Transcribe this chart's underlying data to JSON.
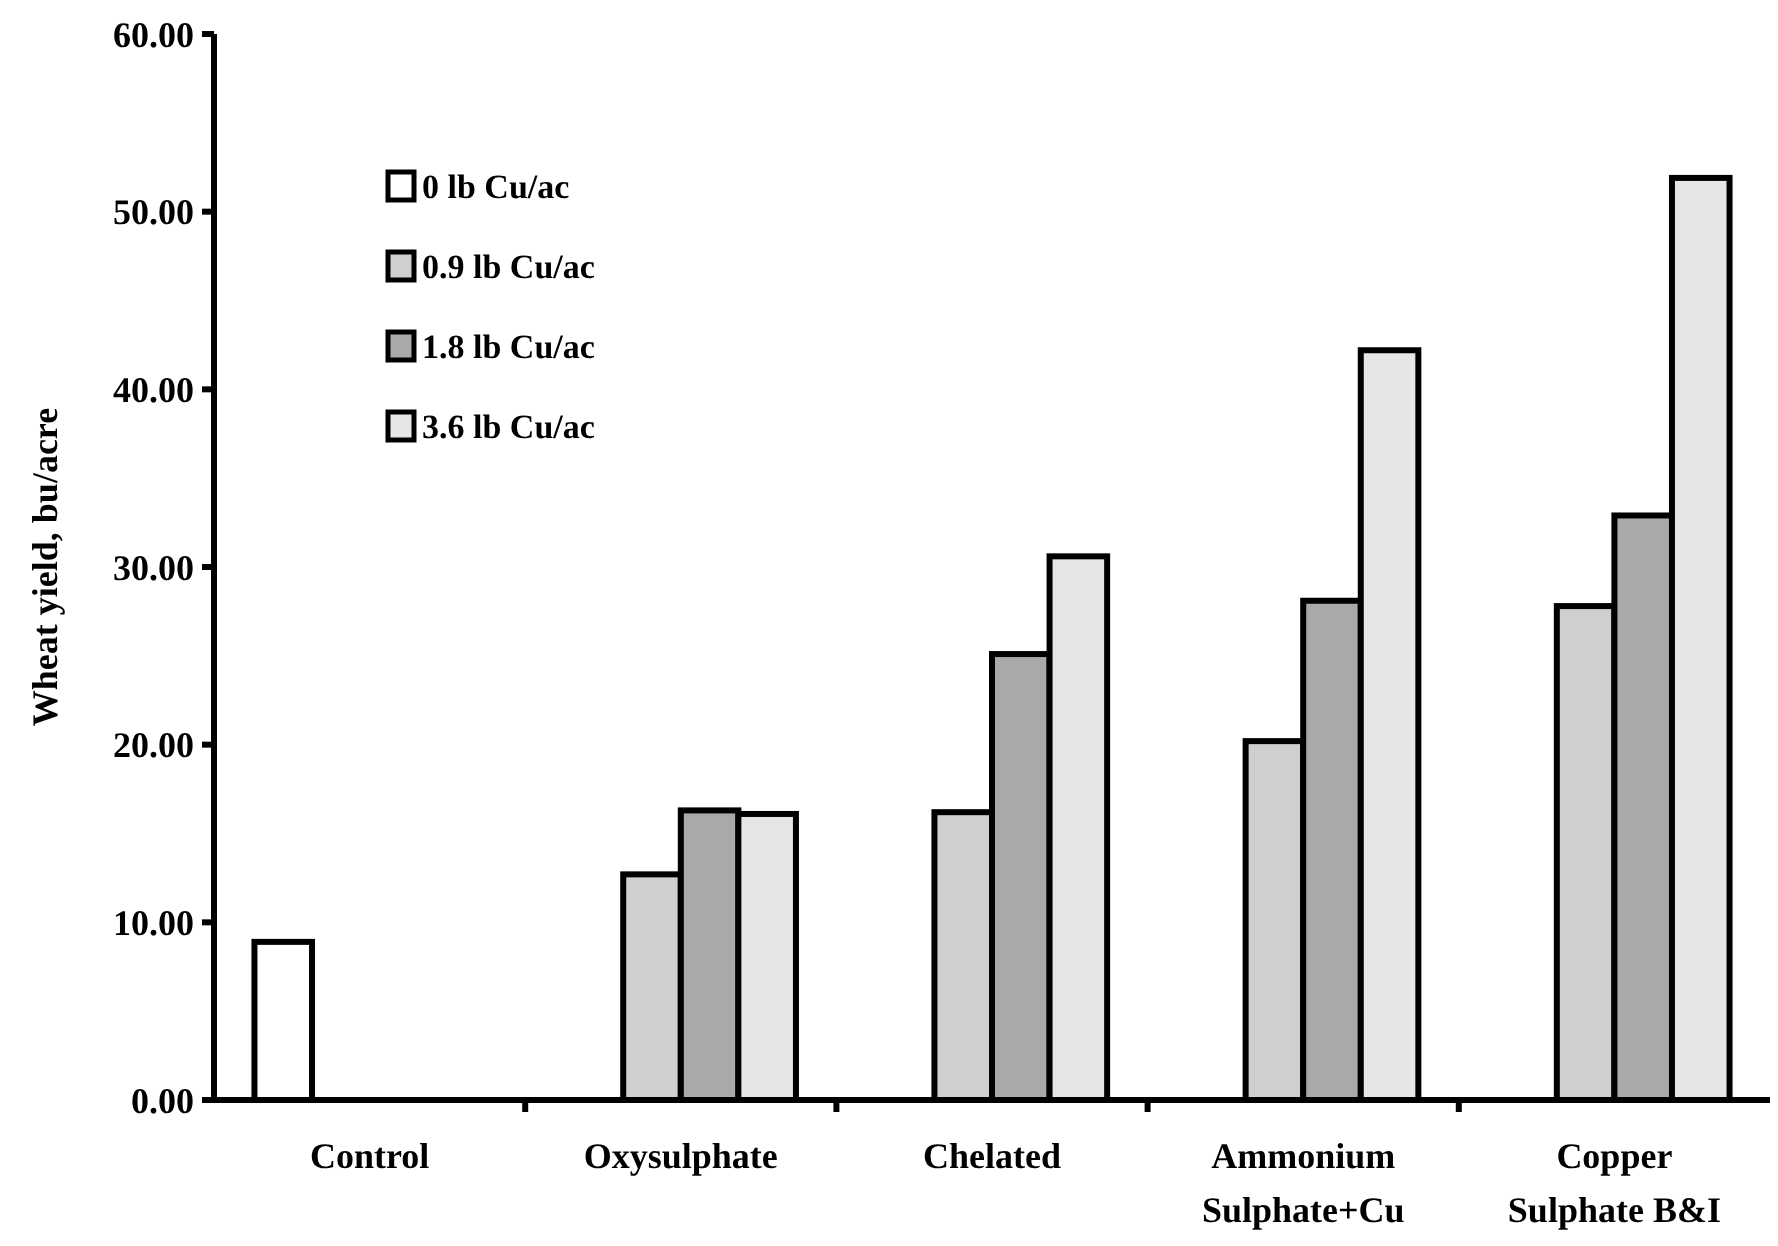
{
  "chart_data": {
    "type": "bar",
    "ylabel": "Wheat yield, bu/acre",
    "categories": [
      "Control",
      "Oxysulphate",
      "Chelated",
      "Ammonium Sulphate+Cu",
      "Copper Sulphate B&I"
    ],
    "series": [
      {
        "name": "0 lb Cu/ac",
        "color": "#ffffff",
        "values": [
          8.9,
          null,
          null,
          null,
          null
        ]
      },
      {
        "name": "0.9 lb Cu/ac",
        "color": "#cfcfcf",
        "values": [
          null,
          12.7,
          16.2,
          20.2,
          27.8
        ]
      },
      {
        "name": "1.8 lb Cu/ac",
        "color": "#a9a9a9",
        "values": [
          null,
          16.3,
          25.1,
          28.1,
          32.9
        ]
      },
      {
        "name": "3.6 lb Cu/ac",
        "color": "#e6e6e6",
        "values": [
          null,
          16.1,
          30.6,
          42.2,
          51.9
        ]
      }
    ],
    "ylim": [
      0,
      60
    ],
    "yticks": [
      {
        "value": 0,
        "label": "0.00"
      },
      {
        "value": 10,
        "label": "10.00"
      },
      {
        "value": 20,
        "label": "20.00"
      },
      {
        "value": 30,
        "label": "30.00"
      },
      {
        "value": 40,
        "label": "40.00"
      },
      {
        "value": 50,
        "label": "50.00"
      },
      {
        "value": 60,
        "label": "60.00"
      }
    ],
    "legend": "top left",
    "grid": false
  }
}
